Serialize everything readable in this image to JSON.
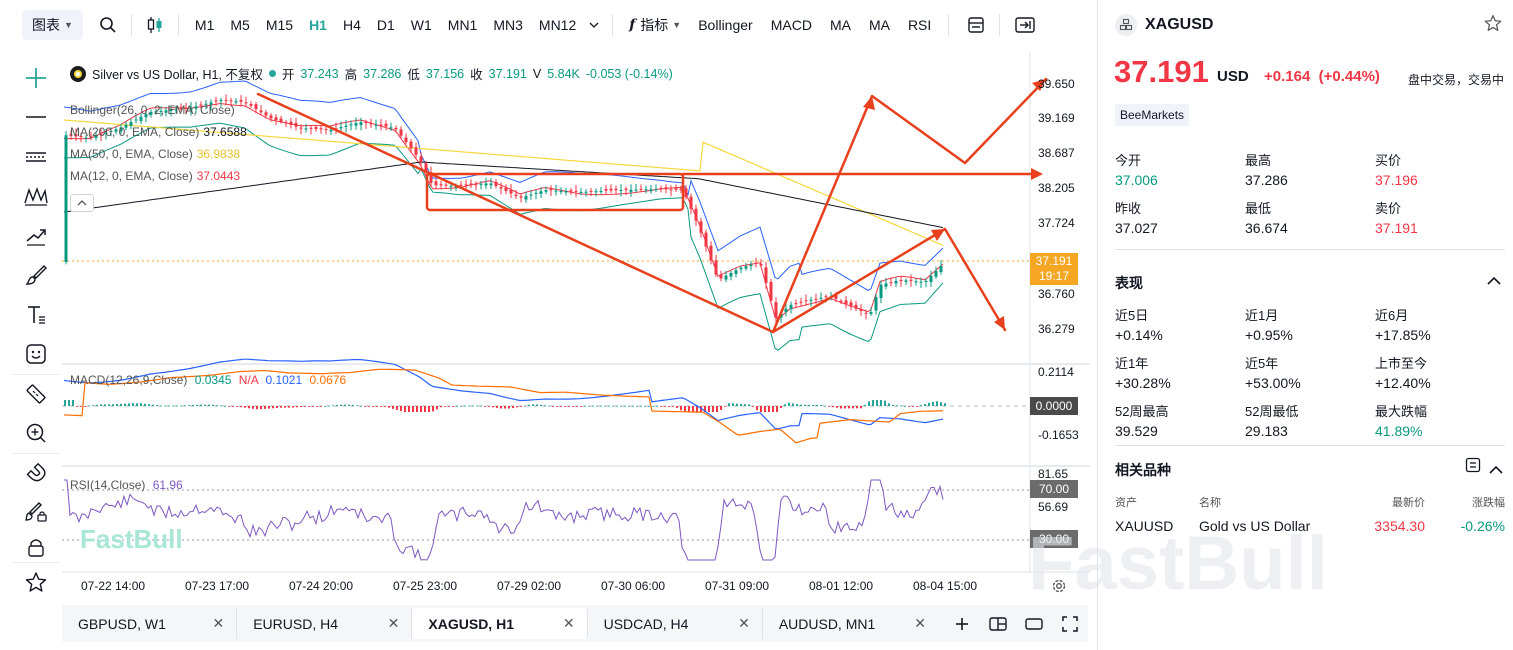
{
  "toolbar": {
    "chart_button": "图表",
    "intervals": [
      {
        "label": "M1",
        "active": false
      },
      {
        "label": "M5",
        "active": false
      },
      {
        "label": "M15",
        "active": false
      },
      {
        "label": "H1",
        "active": true
      },
      {
        "label": "H4",
        "active": false
      },
      {
        "label": "D1",
        "active": false
      },
      {
        "label": "W1",
        "active": false
      },
      {
        "label": "MN1",
        "active": false
      },
      {
        "label": "MN3",
        "active": false
      },
      {
        "label": "MN12",
        "active": false
      }
    ],
    "indicators_label": "指标",
    "indicator_shortcuts": [
      "Bollinger",
      "MACD",
      "MA",
      "MA",
      "RSI"
    ]
  },
  "legend": {
    "title": "Silver vs US Dollar, H1, 不复权",
    "open_label": "开",
    "open": "37.243",
    "high_label": "高",
    "high": "37.286",
    "low_label": "低",
    "low": "37.156",
    "close_label": "收",
    "close": "37.191",
    "volume_label": "V",
    "volume": "5.84K",
    "change": "-0.053 (-0.14%)"
  },
  "indicators": {
    "bollinger": {
      "label": "Bollinger(26, 0, 2, EMA, Close)"
    },
    "ma200": {
      "label": "MA(200, 0, EMA, Close)",
      "value": "37.6588",
      "color": "#131722"
    },
    "ma50": {
      "label": "MA(50, 0, EMA, Close)",
      "value": "36.9838",
      "color": "#f5d73b"
    },
    "ma12": {
      "label": "MA(12, 0, EMA, Close)",
      "value": "37.0443",
      "color": "#f23645"
    },
    "macd": {
      "label": "MACD(12,26,9,Close)",
      "v1": "0.0345",
      "v2": "N/A",
      "v3": "0.1021",
      "v4": "0.0676"
    },
    "rsi": {
      "label": "RSI(14,Close)",
      "value": "61.96"
    }
  },
  "price_axis": [
    "39.650",
    "39.169",
    "38.687",
    "38.205",
    "37.724",
    "36.760",
    "36.279"
  ],
  "current_price_tag": {
    "price": "37.191",
    "time": "19:17"
  },
  "macd_axis": [
    "0.2114",
    "0.0000",
    "-0.1653"
  ],
  "rsi_axis": [
    "81.65",
    "70.00",
    "56.69",
    "30.00"
  ],
  "time_axis": [
    "07-22 14:00",
    "07-23 17:00",
    "07-24 20:00",
    "07-25 23:00",
    "07-29 02:00",
    "07-30 06:00",
    "07-31 09:00",
    "08-01 12:00",
    "08-04 15:00"
  ],
  "chart_watermark": "FastBull",
  "tabs": [
    {
      "label": "GBPUSD, W1",
      "active": false
    },
    {
      "label": "EURUSD, H4",
      "active": false
    },
    {
      "label": "XAGUSD, H1",
      "active": true
    },
    {
      "label": "USDCAD, H4",
      "active": false
    },
    {
      "label": "AUDUSD, MN1",
      "active": false
    }
  ],
  "panel": {
    "symbol": "XAGUSD",
    "price": "37.191",
    "currency": "USD",
    "change": "+0.164",
    "change_pct": "(+0.44%)",
    "session": "盘中交易，交易中",
    "broker": "BeeMarkets",
    "quote": [
      {
        "label": "今开",
        "value": "37.006",
        "tone": "up"
      },
      {
        "label": "最高",
        "value": "37.286",
        "tone": ""
      },
      {
        "label": "买价",
        "value": "37.196",
        "tone": "down"
      },
      {
        "label": "昨收",
        "value": "37.027",
        "tone": ""
      },
      {
        "label": "最低",
        "value": "36.674",
        "tone": ""
      },
      {
        "label": "卖价",
        "value": "37.191",
        "tone": "down"
      }
    ],
    "performance_title": "表现",
    "performance": [
      {
        "label": "近5日",
        "value": "+0.14%",
        "tone": ""
      },
      {
        "label": "近1月",
        "value": "+0.95%",
        "tone": ""
      },
      {
        "label": "近6月",
        "value": "+17.85%",
        "tone": ""
      },
      {
        "label": "近1年",
        "value": "+30.28%",
        "tone": ""
      },
      {
        "label": "近5年",
        "value": "+53.00%",
        "tone": ""
      },
      {
        "label": "上市至今",
        "value": "+12.40%",
        "tone": ""
      },
      {
        "label": "52周最高",
        "value": "39.529",
        "tone": ""
      },
      {
        "label": "52周最低",
        "value": "29.183",
        "tone": ""
      },
      {
        "label": "最大跌幅",
        "value": "41.89%",
        "tone": "up"
      }
    ],
    "related_title": "相关品种",
    "related_headers": {
      "asset": "资产",
      "name": "名称",
      "last": "最新价",
      "change": "涨跌幅"
    },
    "related": [
      {
        "asset": "XAUUSD",
        "name": "Gold vs US Dollar",
        "last": "3354.30",
        "change": "-0.26%"
      }
    ],
    "watermark": "FastBull"
  }
}
